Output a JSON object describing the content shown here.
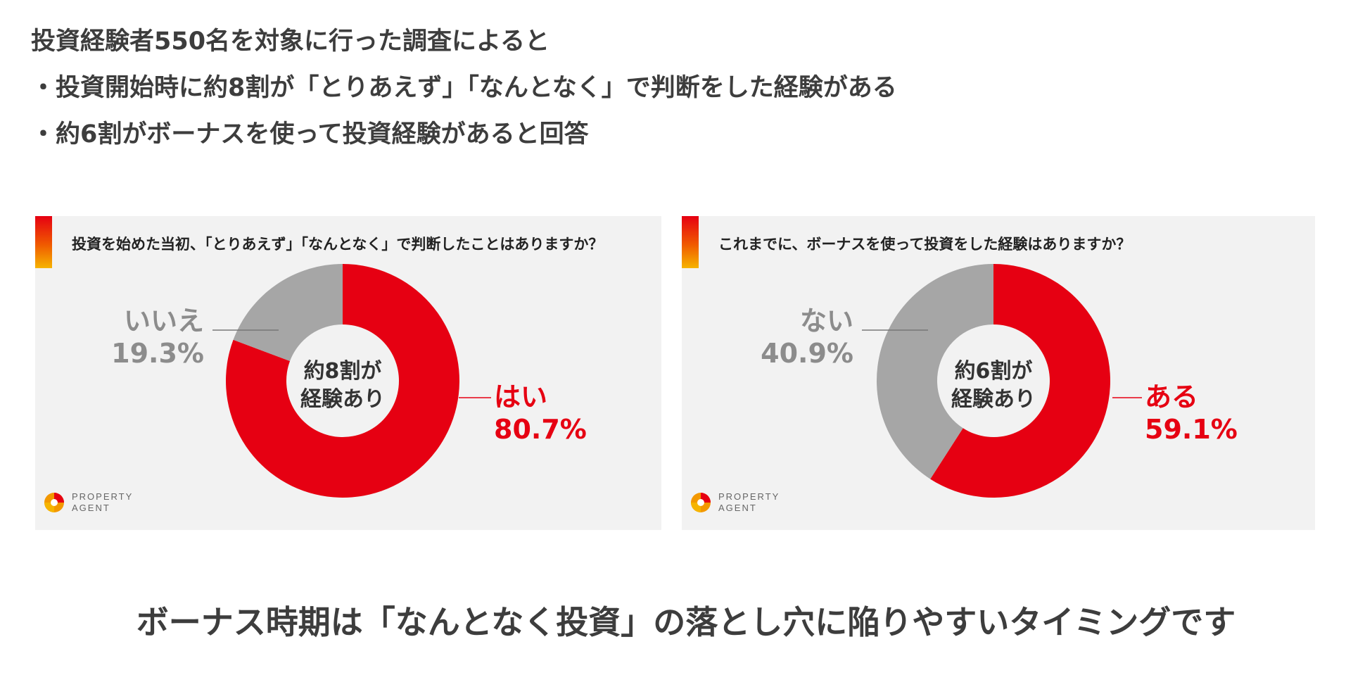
{
  "intro": {
    "line1": "投資経験者550名を対象に行った調査によると",
    "line2": "・投資開始時に約8割が「とりあえず」「なんとなく」で判断をした経験がある",
    "line3": "・約6割がボーナスを使って投資経験があると回答"
  },
  "colors": {
    "red": "#e60012",
    "gray": "#a6a6a6",
    "panel": "#f2f2f2"
  },
  "chart_data": [
    {
      "type": "pie",
      "title": "投資を始めた当初、「とりあえず」「なんとなく」で判断したことはありますか？",
      "center_label": [
        "約8割が",
        "経験あり"
      ],
      "slices": [
        {
          "label": "はい",
          "value": 80.7,
          "value_label": "80.7%",
          "color": "#e60012"
        },
        {
          "label": "いいえ",
          "value": 19.3,
          "value_label": "19.3%",
          "color": "#a6a6a6"
        }
      ]
    },
    {
      "type": "pie",
      "title": "これまでに、ボーナスを使って投資をした経験はありますか？",
      "center_label": [
        "約6割が",
        "経験あり"
      ],
      "slices": [
        {
          "label": "ある",
          "value": 59.1,
          "value_label": "59.1%",
          "color": "#e60012"
        },
        {
          "label": "ない",
          "value": 40.9,
          "value_label": "40.9%",
          "color": "#a6a6a6"
        }
      ]
    }
  ],
  "logo": {
    "line1": "PROPERTY",
    "line2": "AGENT",
    "icon": "property-agent-logo-icon"
  },
  "headline": "ボーナス時期は「なんとなく投資」の落とし穴に陥りやすいタイミングです"
}
